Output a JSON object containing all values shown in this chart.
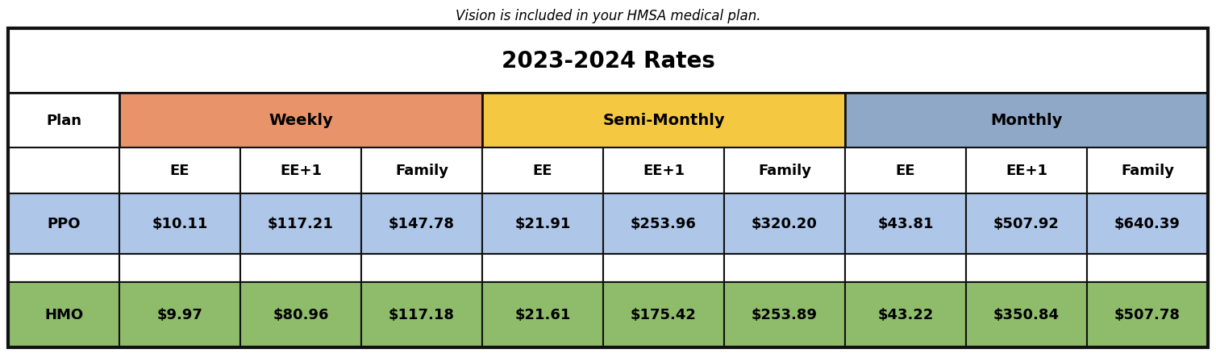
{
  "subtitle": "Vision is included in your HMSA medical plan.",
  "title": "2023-2024 Rates",
  "group_headers": [
    {
      "label": "Weekly",
      "color": "#E8936A"
    },
    {
      "label": "Semi-Monthly",
      "color": "#F5C842"
    },
    {
      "label": "Monthly",
      "color": "#8FA8C8"
    }
  ],
  "rows": [
    {
      "label": "PPO",
      "values": [
        "$10.11",
        "$117.21",
        "$147.78",
        "$21.91",
        "$253.96",
        "$320.20",
        "$43.81",
        "$507.92",
        "$640.39"
      ],
      "row_color": "#AEC6E8"
    },
    {
      "label": "",
      "values": [
        "",
        "",
        "",
        "",
        "",
        "",
        "",
        "",
        ""
      ],
      "row_color": "#FFFFFF"
    },
    {
      "label": "HMO",
      "values": [
        "$9.97",
        "$80.96",
        "$117.18",
        "$21.61",
        "$175.42",
        "$253.89",
        "$43.22",
        "$350.84",
        "$507.78"
      ],
      "row_color": "#8FBC6A"
    }
  ],
  "border_color": "#111111",
  "background_color": "#FFFFFF",
  "title_fontsize": 20,
  "subtitle_fontsize": 12,
  "header_fontsize": 13,
  "cell_fontsize": 13
}
